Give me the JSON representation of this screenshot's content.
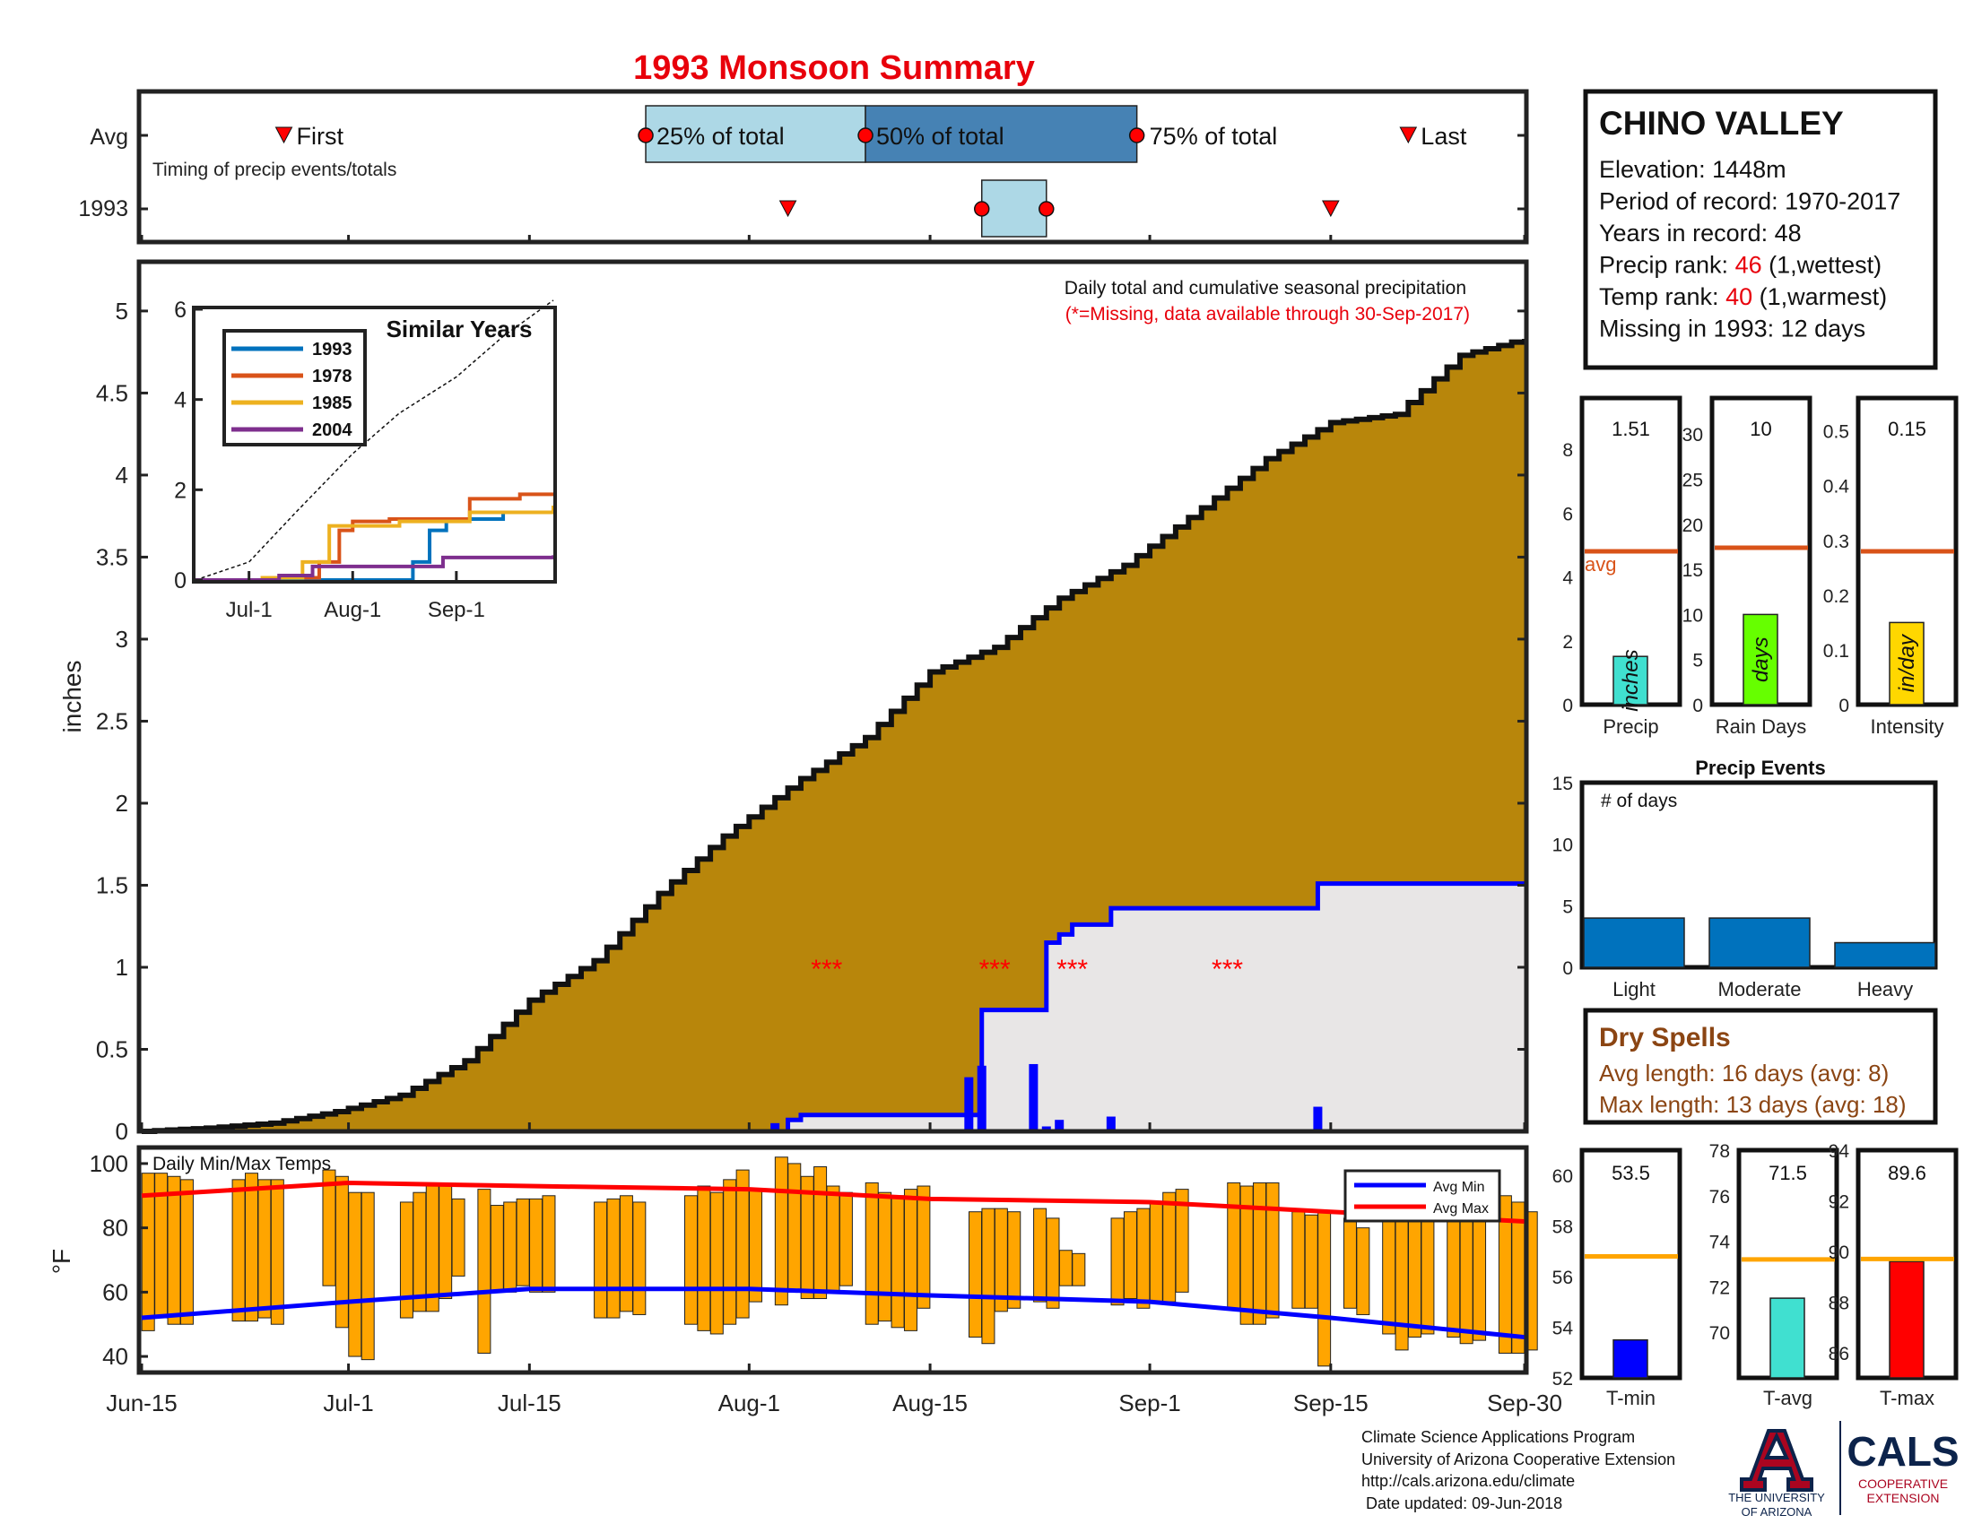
{
  "title": "1993 Monsoon Summary",
  "station": {
    "name": "CHINO VALLEY",
    "lines": [
      {
        "label": "Elevation: ",
        "value": "1448m"
      },
      {
        "label": "Period of record: ",
        "value": "1970-2017"
      },
      {
        "label": "Years in record: ",
        "value": "48"
      },
      {
        "label": "Precip rank: ",
        "value": "46",
        "suffix": " (1,wettest)",
        "highlight": true
      },
      {
        "label": "Temp rank: ",
        "value": "40",
        "suffix": " (1,warmest)",
        "highlight": true
      },
      {
        "label": "Missing in 1993: ",
        "value": "12 days"
      }
    ]
  },
  "timing": {
    "row_avg": "Avg",
    "row_year": "1993",
    "caption": "Timing of precip events/totals",
    "first_label": "First",
    "last_label": "Last",
    "p25_label": "25% of total",
    "p50_label": "50% of total",
    "p75_label": "75% of total",
    "avg": {
      "first": "2018-06-26",
      "p25": "2018-07-24",
      "p50": "2018-08-10",
      "p75": "2018-08-31",
      "last": "2018-09-21"
    },
    "year": {
      "first": "2018-08-04",
      "p25": "2018-08-19",
      "p50": "2018-08-24",
      "last": "2018-09-15"
    }
  },
  "main_chart": {
    "ylabel": "inches",
    "note": "Daily total and cumulative seasonal precipitation",
    "missing_note": "(*=Missing, data available through 30-Sep-2017)",
    "yticks": [
      "0",
      "0.5",
      "1",
      "1.5",
      "2",
      "2.5",
      "3",
      "3.5",
      "4",
      "4.5",
      "5"
    ],
    "missing_marker": "***"
  },
  "x_axis": {
    "ticks": [
      "Jun-15",
      "Jul-1",
      "Jul-15",
      "Aug-1",
      "Aug-15",
      "Sep-1",
      "Sep-15",
      "Sep-30"
    ]
  },
  "inset": {
    "title": "Similar Years",
    "yticks": [
      "0",
      "2",
      "4",
      "6"
    ],
    "xticks": [
      "Jul-1",
      "Aug-1",
      "Sep-1"
    ],
    "legend": [
      "1993",
      "1978",
      "1985",
      "2004"
    ]
  },
  "temp_chart": {
    "title": "Daily Min/Max Temps",
    "ylabel": "°F",
    "yticks": [
      "40",
      "60",
      "80",
      "100"
    ],
    "legend_min": "Avg Min",
    "legend_max": "Avg Max"
  },
  "summary_bars": [
    {
      "label": "Precip",
      "value": "1.51",
      "unit": "inches",
      "avg_label": "avg",
      "yticks": [
        "0",
        "2",
        "4",
        "6",
        "8"
      ]
    },
    {
      "label": "Rain Days",
      "value": "10",
      "unit": "days",
      "yticks": [
        "0",
        "5",
        "10",
        "15",
        "20",
        "25",
        "30"
      ]
    },
    {
      "label": "Intensity",
      "value": "0.15",
      "unit": "in/day",
      "yticks": [
        "0",
        "0.1",
        "0.2",
        "0.3",
        "0.4",
        "0.5"
      ]
    }
  ],
  "events": {
    "title": "Precip Events",
    "ylabel": "# of days",
    "yticks": [
      "0",
      "5",
      "10",
      "15"
    ],
    "categories": [
      "Light",
      "Moderate",
      "Heavy"
    ]
  },
  "dry_spells": {
    "title": "Dry Spells",
    "avg_line": "Avg length: 16 days (avg: 8)",
    "max_line": "Max length: 13 days (avg: 18)"
  },
  "temp_bars": [
    {
      "label": "T-min",
      "value": "53.5",
      "yticks": [
        "52",
        "54",
        "56",
        "58",
        "60"
      ]
    },
    {
      "label": "T-avg",
      "value": "71.5",
      "yticks": [
        "70",
        "72",
        "74",
        "76",
        "78"
      ]
    },
    {
      "label": "T-max",
      "value": "89.6",
      "yticks": [
        "86",
        "88",
        "90",
        "92",
        "94"
      ]
    }
  ],
  "footer": {
    "lines": [
      "Climate Science Applications Program",
      "University of Arizona Cooperative Extension",
      "http://cals.arizona.edu/climate",
      " Date updated: 09-Jun-2018"
    ],
    "ua_logo_text": [
      "THE UNIVERSITY",
      "OF ARIZONA"
    ],
    "cals_logo": "CALS",
    "cals_sub": [
      "COOPERATIVE",
      "EXTENSION"
    ]
  },
  "colors": {
    "title": "#e8000b",
    "brown": "#b8860b",
    "blue": "#0000ff",
    "red": "#ff0000",
    "orange": "#ffa500",
    "avg_line": "#d95319",
    "teal": "#40e0d0",
    "lime": "#66ff00",
    "gold": "#ffd700",
    "event_bar": "#0072bd",
    "dry_text": "#8b4513"
  },
  "chart_data": [
    {
      "type": "area",
      "name": "cumulative seasonal precipitation",
      "x_start": "Jun-15",
      "x_end": "Sep-30",
      "ylim": [
        0,
        5.3
      ],
      "avg_cumulative": [
        [
          "2018-06-15",
          0
        ],
        [
          "2018-06-20",
          0.02
        ],
        [
          "2018-06-25",
          0.05
        ],
        [
          "2018-06-30",
          0.12
        ],
        [
          "2018-07-05",
          0.22
        ],
        [
          "2018-07-10",
          0.43
        ],
        [
          "2018-07-15",
          0.8
        ],
        [
          "2018-07-20",
          1.04
        ],
        [
          "2018-07-25",
          1.45
        ],
        [
          "2018-07-30",
          1.8
        ],
        [
          "2018-08-05",
          2.15
        ],
        [
          "2018-08-10",
          2.4
        ],
        [
          "2018-08-15",
          2.8
        ],
        [
          "2018-08-20",
          2.95
        ],
        [
          "2018-08-25",
          3.25
        ],
        [
          "2018-08-30",
          3.45
        ],
        [
          "2018-09-05",
          3.8
        ],
        [
          "2018-09-10",
          4.1
        ],
        [
          "2018-09-15",
          4.32
        ],
        [
          "2018-09-20",
          4.37
        ],
        [
          "2018-09-25",
          4.73
        ],
        [
          "2018-09-30",
          4.83
        ]
      ],
      "year_cumulative": [
        [
          "2018-06-15",
          0
        ],
        [
          "2018-08-03",
          0
        ],
        [
          "2018-08-04",
          0.07
        ],
        [
          "2018-08-05",
          0.1
        ],
        [
          "2018-08-18",
          0.1
        ],
        [
          "2018-08-19",
          0.35
        ],
        [
          "2018-08-19",
          0.74
        ],
        [
          "2018-08-24",
          0.74
        ],
        [
          "2018-08-24",
          1.15
        ],
        [
          "2018-08-25",
          1.2
        ],
        [
          "2018-08-26",
          1.26
        ],
        [
          "2018-08-29",
          1.36
        ],
        [
          "2018-09-14",
          1.36
        ],
        [
          "2018-09-14",
          1.51
        ],
        [
          "2018-09-30",
          1.51
        ]
      ],
      "daily_precip": [
        [
          "2018-08-03",
          0.05
        ],
        [
          "2018-08-18",
          0.33
        ],
        [
          "2018-08-19",
          0.4
        ],
        [
          "2018-08-23",
          0.41
        ],
        [
          "2018-08-24",
          0.03
        ],
        [
          "2018-08-25",
          0.07
        ],
        [
          "2018-08-29",
          0.09
        ],
        [
          "2018-09-14",
          0.15
        ]
      ],
      "missing_dates": [
        "2018-08-07",
        "2018-08-20",
        "2018-08-26",
        "2018-09-07"
      ]
    },
    {
      "type": "line",
      "name": "Similar Years",
      "ylim": [
        0,
        6
      ],
      "avg_cumulative": [
        [
          "2018-06-15",
          0
        ],
        [
          "2018-07-01",
          0.4
        ],
        [
          "2018-07-15",
          1.5
        ],
        [
          "2018-08-01",
          2.8
        ],
        [
          "2018-08-15",
          3.7
        ],
        [
          "2018-09-01",
          4.5
        ],
        [
          "2018-09-15",
          5.4
        ],
        [
          "2018-09-30",
          6.2
        ]
      ],
      "series": [
        {
          "name": "1993",
          "points": [
            [
              "2018-06-15",
              0
            ],
            [
              "2018-08-04",
              0
            ],
            [
              "2018-08-19",
              0.4
            ],
            [
              "2018-08-24",
              1.1
            ],
            [
              "2018-08-29",
              1.35
            ],
            [
              "2018-09-15",
              1.5
            ],
            [
              "2018-09-30",
              1.55
            ]
          ]
        },
        {
          "name": "1978",
          "points": [
            [
              "2018-06-15",
              0
            ],
            [
              "2018-07-10",
              0.05
            ],
            [
              "2018-07-22",
              0.4
            ],
            [
              "2018-07-28",
              1.1
            ],
            [
              "2018-08-01",
              1.3
            ],
            [
              "2018-08-12",
              1.35
            ],
            [
              "2018-09-05",
              1.8
            ],
            [
              "2018-09-20",
              1.9
            ],
            [
              "2018-09-30",
              1.9
            ]
          ]
        },
        {
          "name": "1985",
          "points": [
            [
              "2018-06-15",
              0
            ],
            [
              "2018-07-05",
              0.05
            ],
            [
              "2018-07-17",
              0.4
            ],
            [
              "2018-07-25",
              1.2
            ],
            [
              "2018-08-15",
              1.3
            ],
            [
              "2018-09-05",
              1.5
            ],
            [
              "2018-09-30",
              1.65
            ]
          ]
        },
        {
          "name": "2004",
          "points": [
            [
              "2018-06-15",
              0
            ],
            [
              "2018-07-10",
              0.1
            ],
            [
              "2018-07-20",
              0.3
            ],
            [
              "2018-08-20",
              0.3
            ],
            [
              "2018-08-28",
              0.5
            ],
            [
              "2018-09-30",
              0.55
            ]
          ]
        }
      ]
    },
    {
      "type": "bar",
      "name": "Daily Min/Max Temps",
      "ylim": [
        35,
        105
      ],
      "avg_max": [
        [
          "2018-06-15",
          90
        ],
        [
          "2018-07-01",
          94
        ],
        [
          "2018-07-15",
          93
        ],
        [
          "2018-08-01",
          92
        ],
        [
          "2018-08-15",
          89
        ],
        [
          "2018-09-01",
          88
        ],
        [
          "2018-09-15",
          85
        ],
        [
          "2018-09-30",
          82
        ]
      ],
      "avg_min": [
        [
          "2018-06-15",
          52
        ],
        [
          "2018-07-01",
          57
        ],
        [
          "2018-07-15",
          61
        ],
        [
          "2018-08-01",
          61
        ],
        [
          "2018-08-15",
          59
        ],
        [
          "2018-09-01",
          57
        ],
        [
          "2018-09-15",
          52
        ],
        [
          "2018-09-30",
          46
        ]
      ],
      "daily_ranges": [
        [
          "2018-06-15",
          48,
          97
        ],
        [
          "2018-06-16",
          52,
          97
        ],
        [
          "2018-06-17",
          50,
          96
        ],
        [
          "2018-06-18",
          50,
          95
        ],
        [
          "2018-06-22",
          51,
          95
        ],
        [
          "2018-06-23",
          51,
          97
        ],
        [
          "2018-06-24",
          52,
          95
        ],
        [
          "2018-06-25",
          50,
          95
        ],
        [
          "2018-06-29",
          62,
          98
        ],
        [
          "2018-06-30",
          49,
          96
        ],
        [
          "2018-07-01",
          40,
          91
        ],
        [
          "2018-07-02",
          39,
          91
        ],
        [
          "2018-07-05",
          52,
          88
        ],
        [
          "2018-07-06",
          54,
          91
        ],
        [
          "2018-07-07",
          54,
          93
        ],
        [
          "2018-07-08",
          58,
          93
        ],
        [
          "2018-07-09",
          65,
          89
        ],
        [
          "2018-07-11",
          41,
          92
        ],
        [
          "2018-07-12",
          60,
          87
        ],
        [
          "2018-07-13",
          60,
          88
        ],
        [
          "2018-07-14",
          62,
          89
        ],
        [
          "2018-07-15",
          60,
          89
        ],
        [
          "2018-07-16",
          60,
          90
        ],
        [
          "2018-07-20",
          52,
          88
        ],
        [
          "2018-07-21",
          52,
          89
        ],
        [
          "2018-07-22",
          54,
          90
        ],
        [
          "2018-07-23",
          53,
          88
        ],
        [
          "2018-07-27",
          50,
          90
        ],
        [
          "2018-07-28",
          48,
          93
        ],
        [
          "2018-07-29",
          47,
          91
        ],
        [
          "2018-07-30",
          50,
          95
        ],
        [
          "2018-07-31",
          52,
          98
        ],
        [
          "2018-08-01",
          57,
          92
        ],
        [
          "2018-08-03",
          56,
          102
        ],
        [
          "2018-08-04",
          60,
          100
        ],
        [
          "2018-08-05",
          58,
          96
        ],
        [
          "2018-08-06",
          58,
          99
        ],
        [
          "2018-08-07",
          60,
          93
        ],
        [
          "2018-08-08",
          62,
          91
        ],
        [
          "2018-08-10",
          50,
          94
        ],
        [
          "2018-08-11",
          51,
          91
        ],
        [
          "2018-08-12",
          49,
          90
        ],
        [
          "2018-08-13",
          48,
          92
        ],
        [
          "2018-08-14",
          55,
          93
        ],
        [
          "2018-08-18",
          46,
          85
        ],
        [
          "2018-08-19",
          44,
          86
        ],
        [
          "2018-08-20",
          54,
          86
        ],
        [
          "2018-08-21",
          55,
          85
        ],
        [
          "2018-08-23",
          57,
          86
        ],
        [
          "2018-08-24",
          55,
          83
        ],
        [
          "2018-08-25",
          62,
          73
        ],
        [
          "2018-08-26",
          62,
          72
        ],
        [
          "2018-08-29",
          56,
          83
        ],
        [
          "2018-08-30",
          58,
          85
        ],
        [
          "2018-08-31",
          55,
          86
        ],
        [
          "2018-09-01",
          57,
          88
        ],
        [
          "2018-09-02",
          57,
          91
        ],
        [
          "2018-09-03",
          60,
          92
        ],
        [
          "2018-09-07",
          55,
          94
        ],
        [
          "2018-09-08",
          50,
          93
        ],
        [
          "2018-09-09",
          50,
          94
        ],
        [
          "2018-09-10",
          52,
          94
        ],
        [
          "2018-09-12",
          55,
          85
        ],
        [
          "2018-09-13",
          55,
          84
        ],
        [
          "2018-09-14",
          37,
          85
        ],
        [
          "2018-09-16",
          55,
          83
        ],
        [
          "2018-09-17",
          53,
          80
        ],
        [
          "2018-09-19",
          47,
          83
        ],
        [
          "2018-09-20",
          42,
          85
        ],
        [
          "2018-09-21",
          46,
          88
        ],
        [
          "2018-09-22",
          47,
          85
        ],
        [
          "2018-09-24",
          46,
          85
        ],
        [
          "2018-09-25",
          44,
          86
        ],
        [
          "2018-09-26",
          45,
          84
        ],
        [
          "2018-09-28",
          41,
          90
        ],
        [
          "2018-09-29",
          41,
          88
        ],
        [
          "2018-09-30",
          42,
          85
        ]
      ]
    },
    {
      "type": "bar",
      "name": "Season totals",
      "panels": [
        {
          "category": "Precip",
          "value": 1.51,
          "avg": 4.8,
          "ylim": [
            0,
            9.6
          ]
        },
        {
          "category": "Rain Days",
          "value": 10,
          "avg": 17.4,
          "ylim": [
            0,
            34
          ]
        },
        {
          "category": "Intensity",
          "value": 0.15,
          "avg": 0.28,
          "ylim": [
            0,
            0.56
          ]
        }
      ]
    },
    {
      "type": "bar",
      "name": "Precip Events",
      "categories": [
        "Light",
        "Moderate",
        "Heavy"
      ],
      "values": [
        4,
        4,
        2
      ],
      "ylim": [
        0,
        15
      ]
    },
    {
      "type": "bar",
      "name": "Temperature means",
      "panels": [
        {
          "category": "T-min",
          "value": 53.5,
          "avg": 56.8,
          "ylim": [
            52,
            61
          ]
        },
        {
          "category": "T-avg",
          "value": 71.5,
          "avg": 73.2,
          "ylim": [
            68,
            78
          ]
        },
        {
          "category": "T-max",
          "value": 89.6,
          "avg": 89.7,
          "ylim": [
            85,
            94
          ]
        }
      ]
    }
  ]
}
